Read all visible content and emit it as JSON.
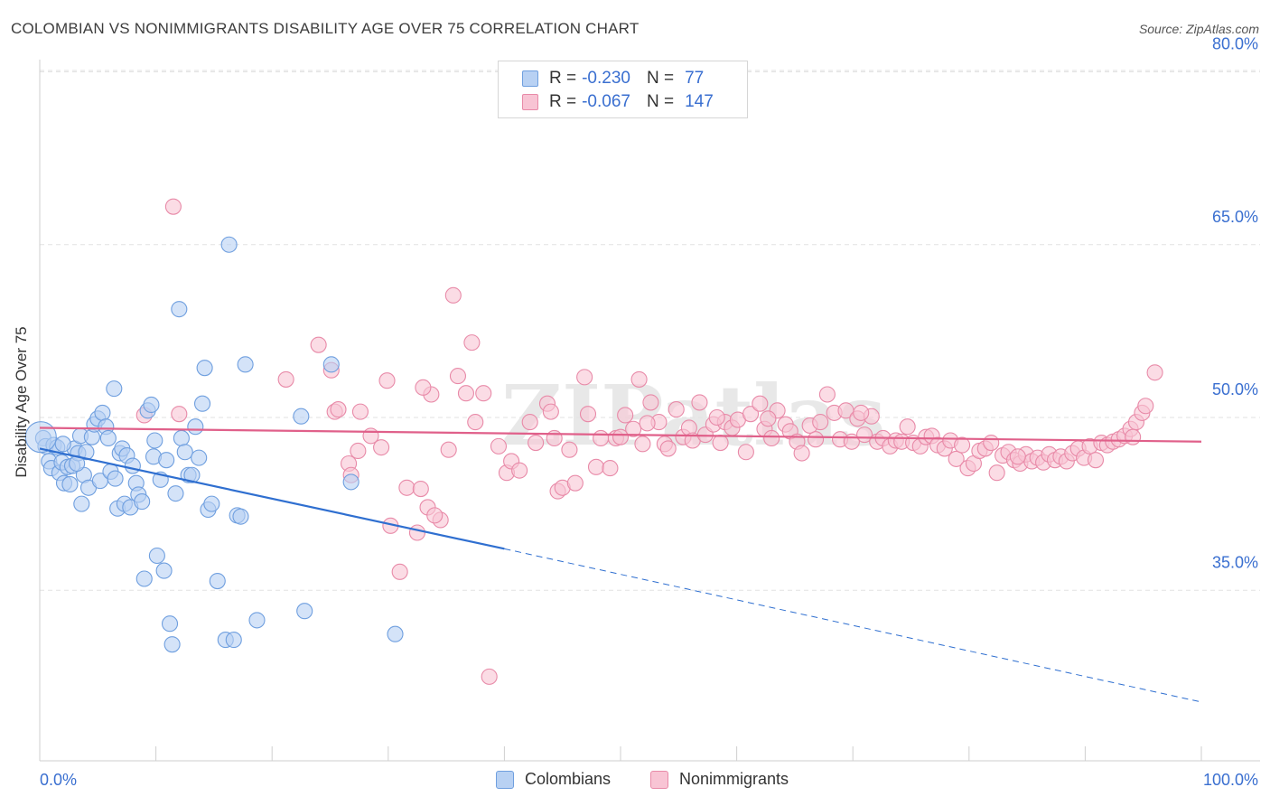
{
  "header": {
    "title": "COLOMBIAN VS NONIMMIGRANTS DISABILITY AGE OVER 75 CORRELATION CHART",
    "source": "Source: ZipAtlas.com"
  },
  "legend": {
    "r_label": "R =",
    "n_label": "N =",
    "rows": [
      {
        "r": "-0.230",
        "n": "77",
        "fill": "#b8d1f3",
        "stroke": "#6f9fdf"
      },
      {
        "r": "-0.067",
        "n": "147",
        "fill": "#f8c4d4",
        "stroke": "#e88aa8"
      }
    ]
  },
  "bottom_legend": [
    {
      "label": "Colombians",
      "fill": "#b8d1f3",
      "stroke": "#6f9fdf"
    },
    {
      "label": "Nonimmigrants",
      "fill": "#f8c4d4",
      "stroke": "#e88aa8"
    }
  ],
  "watermark": "ZIPatlas",
  "chart_data": {
    "type": "scatter",
    "ylabel": "Disability Age Over 75",
    "xlabel": "",
    "xlim": [
      0,
      100
    ],
    "ylim": [
      20,
      82
    ],
    "x_tick_labels": [
      "0.0%",
      "100.0%"
    ],
    "y_ticks": [
      35,
      50,
      65,
      80
    ],
    "y_tick_labels": [
      "35.0%",
      "50.0%",
      "65.0%",
      "80.0%"
    ],
    "grid": "horizontal dashed",
    "legend_position": "top-center",
    "series": [
      {
        "name": "Colombians",
        "color": "#6f9fdf",
        "fill": "#b8d1f3",
        "line_color": "#2f6fd0",
        "trend": {
          "x0": 0,
          "y0": 47.3,
          "x1": 40,
          "y1": 38.6,
          "dash_to_x": 100,
          "dash_to_y": 25.3
        },
        "points": [
          [
            0.3,
            48.2
          ],
          [
            0.5,
            47.5
          ],
          [
            0.8,
            46.2
          ],
          [
            1.0,
            45.6
          ],
          [
            1.2,
            47.6
          ],
          [
            1.5,
            47.4
          ],
          [
            1.7,
            45.2
          ],
          [
            1.9,
            46.1
          ],
          [
            2.1,
            44.3
          ],
          [
            2.4,
            45.7
          ],
          [
            2.6,
            44.2
          ],
          [
            2.8,
            45.8
          ],
          [
            3.0,
            47.3
          ],
          [
            3.3,
            46.9
          ],
          [
            3.5,
            48.4
          ],
          [
            3.6,
            42.5
          ],
          [
            3.8,
            45.0
          ],
          [
            4.0,
            47.0
          ],
          [
            4.2,
            43.9
          ],
          [
            4.5,
            48.3
          ],
          [
            4.7,
            49.4
          ],
          [
            5.0,
            49.9
          ],
          [
            5.2,
            44.5
          ],
          [
            5.4,
            50.4
          ],
          [
            5.7,
            49.2
          ],
          [
            5.9,
            48.2
          ],
          [
            6.1,
            45.3
          ],
          [
            6.4,
            52.5
          ],
          [
            6.5,
            44.7
          ],
          [
            6.7,
            42.1
          ],
          [
            6.9,
            46.9
          ],
          [
            7.1,
            47.3
          ],
          [
            7.3,
            42.5
          ],
          [
            7.5,
            46.7
          ],
          [
            7.8,
            42.2
          ],
          [
            8.0,
            45.8
          ],
          [
            8.3,
            44.3
          ],
          [
            8.5,
            43.3
          ],
          [
            8.8,
            42.7
          ],
          [
            9.0,
            36.0
          ],
          [
            9.3,
            50.6
          ],
          [
            9.6,
            51.1
          ],
          [
            9.8,
            46.6
          ],
          [
            10.1,
            38.0
          ],
          [
            10.4,
            44.6
          ],
          [
            10.7,
            36.7
          ],
          [
            10.9,
            46.3
          ],
          [
            11.2,
            32.1
          ],
          [
            11.4,
            30.3
          ],
          [
            11.7,
            43.4
          ],
          [
            12.0,
            59.4
          ],
          [
            12.2,
            48.2
          ],
          [
            12.5,
            47.0
          ],
          [
            12.8,
            45.0
          ],
          [
            13.1,
            45.0
          ],
          [
            13.4,
            49.2
          ],
          [
            13.7,
            46.5
          ],
          [
            14.0,
            51.2
          ],
          [
            14.2,
            54.3
          ],
          [
            14.5,
            42.0
          ],
          [
            14.8,
            42.5
          ],
          [
            15.3,
            35.8
          ],
          [
            16.0,
            30.7
          ],
          [
            16.3,
            65.0
          ],
          [
            16.7,
            30.7
          ],
          [
            17.0,
            41.5
          ],
          [
            17.3,
            41.4
          ],
          [
            17.7,
            54.6
          ],
          [
            18.7,
            32.4
          ],
          [
            22.5,
            50.1
          ],
          [
            22.8,
            33.2
          ],
          [
            25.1,
            54.6
          ],
          [
            26.8,
            44.4
          ],
          [
            30.6,
            31.2
          ],
          [
            2.0,
            47.7
          ],
          [
            3.2,
            46.0
          ],
          [
            9.9,
            48.0
          ]
        ]
      },
      {
        "name": "Nonimmigrants",
        "color": "#e88aa8",
        "fill": "#f8c4d4",
        "line_color": "#e0608a",
        "trend": {
          "x0": 0,
          "y0": 49.1,
          "x1": 100,
          "y1": 47.9
        },
        "points": [
          [
            11.5,
            68.3
          ],
          [
            9.0,
            50.2
          ],
          [
            21.2,
            53.3
          ],
          [
            24.0,
            56.3
          ],
          [
            25.1,
            54.1
          ],
          [
            25.4,
            50.5
          ],
          [
            25.7,
            50.7
          ],
          [
            26.6,
            46.0
          ],
          [
            26.8,
            45.0
          ],
          [
            27.4,
            47.1
          ],
          [
            28.5,
            48.4
          ],
          [
            29.4,
            47.4
          ],
          [
            29.9,
            53.2
          ],
          [
            30.2,
            40.6
          ],
          [
            31.0,
            36.6
          ],
          [
            31.6,
            43.9
          ],
          [
            32.5,
            40.0
          ],
          [
            32.8,
            43.8
          ],
          [
            33.4,
            42.2
          ],
          [
            33.7,
            52.0
          ],
          [
            34.5,
            41.1
          ],
          [
            35.2,
            47.2
          ],
          [
            35.6,
            60.6
          ],
          [
            36.0,
            53.6
          ],
          [
            36.7,
            52.1
          ],
          [
            37.2,
            56.5
          ],
          [
            37.5,
            49.6
          ],
          [
            38.2,
            52.1
          ],
          [
            38.7,
            27.5
          ],
          [
            40.2,
            45.2
          ],
          [
            40.6,
            46.2
          ],
          [
            41.3,
            45.4
          ],
          [
            42.2,
            49.6
          ],
          [
            42.7,
            47.8
          ],
          [
            43.7,
            51.2
          ],
          [
            44.3,
            48.2
          ],
          [
            44.6,
            43.6
          ],
          [
            45.0,
            43.9
          ],
          [
            45.6,
            47.2
          ],
          [
            46.1,
            44.3
          ],
          [
            46.9,
            53.5
          ],
          [
            47.2,
            50.3
          ],
          [
            47.9,
            45.7
          ],
          [
            48.3,
            48.2
          ],
          [
            49.1,
            45.6
          ],
          [
            49.6,
            48.2
          ],
          [
            50.0,
            48.3
          ],
          [
            50.4,
            50.2
          ],
          [
            51.1,
            49.0
          ],
          [
            51.6,
            53.3
          ],
          [
            51.9,
            47.7
          ],
          [
            52.6,
            51.3
          ],
          [
            53.3,
            49.6
          ],
          [
            53.8,
            47.7
          ],
          [
            54.1,
            47.3
          ],
          [
            54.8,
            50.7
          ],
          [
            55.4,
            48.3
          ],
          [
            55.9,
            49.1
          ],
          [
            56.2,
            48.0
          ],
          [
            56.8,
            51.3
          ],
          [
            57.3,
            48.5
          ],
          [
            58.0,
            49.4
          ],
          [
            58.6,
            47.8
          ],
          [
            59.0,
            49.6
          ],
          [
            59.6,
            49.1
          ],
          [
            60.1,
            49.8
          ],
          [
            60.8,
            47.0
          ],
          [
            61.2,
            50.3
          ],
          [
            62.0,
            51.2
          ],
          [
            62.4,
            49.0
          ],
          [
            63.0,
            48.2
          ],
          [
            63.5,
            50.6
          ],
          [
            64.2,
            49.4
          ],
          [
            64.6,
            48.8
          ],
          [
            65.2,
            47.9
          ],
          [
            65.6,
            46.9
          ],
          [
            66.3,
            49.3
          ],
          [
            66.8,
            48.1
          ],
          [
            67.2,
            49.6
          ],
          [
            67.8,
            52.0
          ],
          [
            68.4,
            50.4
          ],
          [
            68.9,
            48.1
          ],
          [
            69.4,
            50.6
          ],
          [
            69.9,
            47.9
          ],
          [
            70.4,
            49.9
          ],
          [
            71.0,
            48.5
          ],
          [
            71.6,
            50.1
          ],
          [
            72.1,
            47.9
          ],
          [
            72.6,
            48.2
          ],
          [
            73.2,
            47.5
          ],
          [
            73.7,
            48.0
          ],
          [
            74.2,
            47.9
          ],
          [
            74.7,
            49.2
          ],
          [
            75.2,
            47.8
          ],
          [
            75.8,
            47.5
          ],
          [
            76.3,
            48.3
          ],
          [
            76.8,
            48.4
          ],
          [
            77.3,
            47.6
          ],
          [
            77.9,
            47.3
          ],
          [
            78.4,
            48.0
          ],
          [
            78.9,
            46.4
          ],
          [
            79.4,
            47.6
          ],
          [
            79.9,
            45.6
          ],
          [
            80.4,
            46.0
          ],
          [
            80.9,
            47.1
          ],
          [
            81.4,
            47.3
          ],
          [
            81.9,
            47.8
          ],
          [
            82.4,
            45.2
          ],
          [
            82.9,
            46.7
          ],
          [
            83.4,
            47.0
          ],
          [
            83.9,
            46.3
          ],
          [
            84.4,
            46.0
          ],
          [
            84.9,
            46.8
          ],
          [
            85.4,
            46.2
          ],
          [
            85.9,
            46.5
          ],
          [
            86.4,
            46.1
          ],
          [
            86.9,
            46.8
          ],
          [
            87.4,
            46.3
          ],
          [
            87.9,
            46.6
          ],
          [
            88.4,
            46.2
          ],
          [
            88.9,
            46.9
          ],
          [
            89.4,
            47.3
          ],
          [
            89.9,
            46.5
          ],
          [
            90.4,
            47.5
          ],
          [
            90.9,
            46.3
          ],
          [
            91.4,
            47.8
          ],
          [
            91.9,
            47.6
          ],
          [
            92.4,
            47.9
          ],
          [
            92.9,
            48.1
          ],
          [
            93.4,
            48.4
          ],
          [
            93.9,
            49.0
          ],
          [
            94.4,
            49.6
          ],
          [
            94.9,
            50.4
          ],
          [
            95.2,
            51.0
          ],
          [
            96.0,
            53.9
          ],
          [
            12.0,
            50.3
          ],
          [
            27.6,
            50.5
          ],
          [
            33.0,
            52.6
          ],
          [
            34.0,
            41.5
          ],
          [
            39.5,
            47.5
          ],
          [
            44.0,
            50.5
          ],
          [
            52.3,
            49.5
          ],
          [
            58.3,
            50.0
          ],
          [
            70.7,
            50.4
          ],
          [
            94.1,
            48.3
          ],
          [
            62.7,
            49.9
          ],
          [
            84.2,
            46.6
          ]
        ]
      }
    ]
  }
}
